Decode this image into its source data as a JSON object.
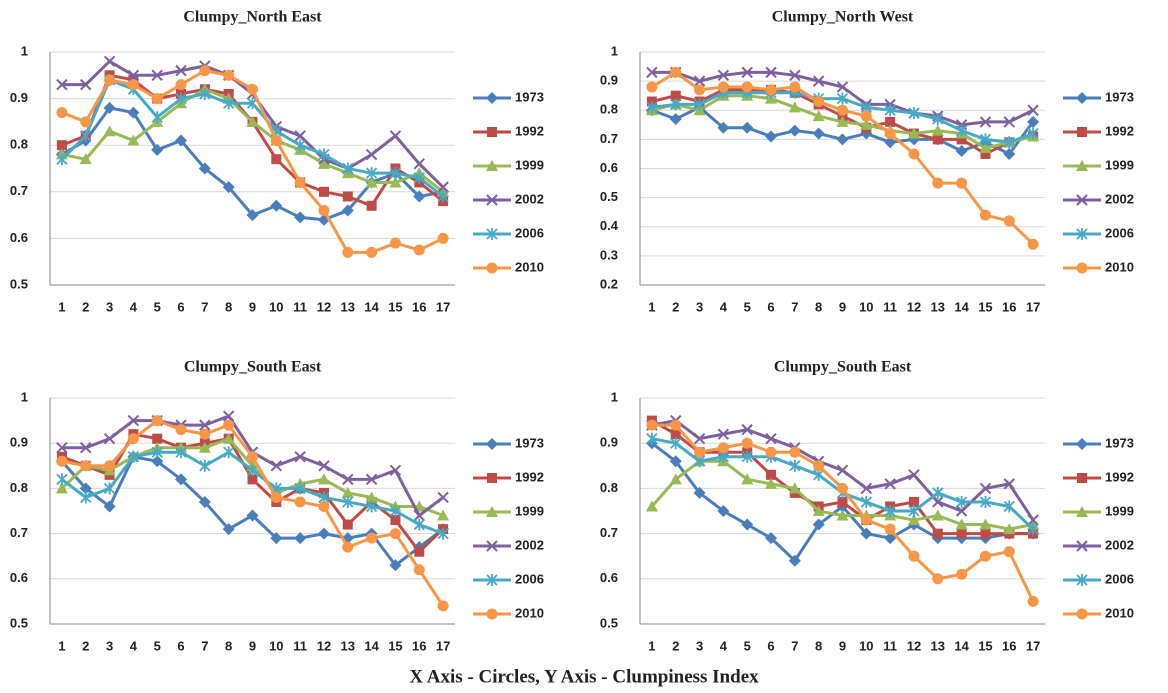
{
  "chart_data": [
    {
      "type": "line",
      "title": "Clumpy_North  East",
      "categories": [
        "1",
        "2",
        "3",
        "4",
        "5",
        "6",
        "7",
        "8",
        "9",
        "10",
        "11",
        "12",
        "13",
        "14",
        "15",
        "16",
        "17"
      ],
      "ylim": [
        0.5,
        1
      ],
      "yticks": [
        0.5,
        0.6,
        0.7,
        0.8,
        0.9,
        1
      ],
      "grid": true,
      "series": [
        {
          "name": "1973",
          "color": "#4a7ebb",
          "values": [
            0.78,
            0.81,
            0.88,
            0.87,
            0.79,
            0.81,
            0.75,
            0.71,
            0.65,
            0.67,
            0.645,
            0.64,
            0.66,
            0.72,
            0.74,
            0.69,
            0.7
          ]
        },
        {
          "name": "1992",
          "color": "#be4b48",
          "values": [
            0.8,
            0.82,
            0.95,
            0.94,
            0.9,
            0.91,
            0.92,
            0.91,
            0.85,
            0.77,
            0.72,
            0.7,
            0.69,
            0.67,
            0.75,
            0.72,
            0.68
          ]
        },
        {
          "name": "1999",
          "color": "#98b954",
          "values": [
            0.78,
            0.77,
            0.83,
            0.81,
            0.85,
            0.89,
            0.92,
            0.9,
            0.85,
            0.81,
            0.79,
            0.76,
            0.74,
            0.72,
            0.72,
            0.74,
            0.7
          ]
        },
        {
          "name": "2002",
          "color": "#7d60a0",
          "values": [
            0.93,
            0.93,
            0.98,
            0.95,
            0.95,
            0.96,
            0.97,
            0.95,
            0.91,
            0.84,
            0.82,
            0.77,
            0.75,
            0.78,
            0.82,
            0.76,
            0.71
          ]
        },
        {
          "name": "2006",
          "color": "#46aac5",
          "values": [
            0.77,
            0.82,
            0.94,
            0.92,
            0.86,
            0.9,
            0.91,
            0.89,
            0.89,
            0.83,
            0.8,
            0.78,
            0.75,
            0.74,
            0.74,
            0.73,
            0.69
          ]
        },
        {
          "name": "2010",
          "color": "#f79646",
          "values": [
            0.87,
            0.85,
            0.94,
            0.93,
            0.9,
            0.93,
            0.96,
            0.95,
            0.92,
            0.81,
            0.72,
            0.66,
            0.57,
            0.57,
            0.59,
            0.575,
            0.6
          ]
        }
      ]
    },
    {
      "type": "line",
      "title": "Clumpy_North  West",
      "categories": [
        "1",
        "2",
        "3",
        "4",
        "5",
        "6",
        "7",
        "8",
        "9",
        "10",
        "11",
        "12",
        "13",
        "14",
        "15",
        "16",
        "17"
      ],
      "ylim": [
        0.2,
        1
      ],
      "yticks": [
        0.2,
        0.3,
        0.4,
        0.5,
        0.6,
        0.7,
        0.8,
        0.9,
        1
      ],
      "grid": true,
      "series": [
        {
          "name": "1973",
          "color": "#4a7ebb",
          "values": [
            0.8,
            0.77,
            0.81,
            0.74,
            0.74,
            0.71,
            0.73,
            0.72,
            0.7,
            0.72,
            0.69,
            0.7,
            0.7,
            0.66,
            0.69,
            0.65,
            0.76
          ]
        },
        {
          "name": "1992",
          "color": "#be4b48",
          "values": [
            0.83,
            0.85,
            0.83,
            0.87,
            0.87,
            0.87,
            0.86,
            0.82,
            0.78,
            0.74,
            0.76,
            0.72,
            0.7,
            0.7,
            0.65,
            0.69,
            0.71
          ]
        },
        {
          "name": "1999",
          "color": "#98b954",
          "values": [
            0.8,
            0.82,
            0.8,
            0.85,
            0.85,
            0.84,
            0.81,
            0.78,
            0.76,
            0.75,
            0.73,
            0.72,
            0.73,
            0.72,
            0.67,
            0.69,
            0.71
          ]
        },
        {
          "name": "2002",
          "color": "#7d60a0",
          "values": [
            0.93,
            0.93,
            0.9,
            0.92,
            0.93,
            0.93,
            0.92,
            0.9,
            0.88,
            0.82,
            0.82,
            0.79,
            0.78,
            0.75,
            0.76,
            0.76,
            0.8
          ]
        },
        {
          "name": "2006",
          "color": "#46aac5",
          "values": [
            0.81,
            0.82,
            0.82,
            0.86,
            0.86,
            0.86,
            0.86,
            0.84,
            0.84,
            0.81,
            0.8,
            0.79,
            0.77,
            0.73,
            0.7,
            0.69,
            0.72
          ]
        },
        {
          "name": "2010",
          "color": "#f79646",
          "values": [
            0.88,
            0.93,
            0.87,
            0.88,
            0.88,
            0.87,
            0.88,
            0.83,
            0.8,
            0.78,
            0.72,
            0.65,
            0.55,
            0.55,
            0.44,
            0.42,
            0.34
          ]
        }
      ]
    },
    {
      "type": "line",
      "title": "Clumpy_South  East",
      "categories": [
        "1",
        "2",
        "3",
        "4",
        "5",
        "6",
        "7",
        "8",
        "9",
        "10",
        "11",
        "12",
        "13",
        "14",
        "15",
        "16",
        "17"
      ],
      "ylim": [
        0.5,
        1
      ],
      "yticks": [
        0.5,
        0.6,
        0.7,
        0.8,
        0.9,
        1
      ],
      "grid": true,
      "series": [
        {
          "name": "1973",
          "color": "#4a7ebb",
          "values": [
            0.86,
            0.8,
            0.76,
            0.87,
            0.86,
            0.82,
            0.77,
            0.71,
            0.74,
            0.69,
            0.69,
            0.7,
            0.69,
            0.7,
            0.63,
            0.67,
            0.71
          ]
        },
        {
          "name": "1992",
          "color": "#be4b48",
          "values": [
            0.87,
            0.85,
            0.83,
            0.92,
            0.91,
            0.89,
            0.9,
            0.91,
            0.82,
            0.77,
            0.8,
            0.79,
            0.72,
            0.77,
            0.73,
            0.66,
            0.71
          ]
        },
        {
          "name": "1999",
          "color": "#98b954",
          "values": [
            0.8,
            0.85,
            0.84,
            0.87,
            0.89,
            0.89,
            0.89,
            0.91,
            0.85,
            0.79,
            0.81,
            0.82,
            0.79,
            0.78,
            0.76,
            0.76,
            0.74
          ]
        },
        {
          "name": "2002",
          "color": "#7d60a0",
          "values": [
            0.89,
            0.89,
            0.91,
            0.95,
            0.95,
            0.94,
            0.94,
            0.96,
            0.88,
            0.85,
            0.87,
            0.85,
            0.82,
            0.82,
            0.84,
            0.74,
            0.78
          ]
        },
        {
          "name": "2006",
          "color": "#46aac5",
          "values": [
            0.82,
            0.78,
            0.8,
            0.87,
            0.88,
            0.88,
            0.85,
            0.88,
            0.84,
            0.8,
            0.8,
            0.78,
            0.77,
            0.76,
            0.75,
            0.72,
            0.7
          ]
        },
        {
          "name": "2010",
          "color": "#f79646",
          "values": [
            0.86,
            0.85,
            0.85,
            0.91,
            0.95,
            0.93,
            0.92,
            0.94,
            0.87,
            0.78,
            0.77,
            0.76,
            0.67,
            0.69,
            0.7,
            0.62,
            0.54
          ]
        }
      ]
    },
    {
      "type": "line",
      "title": "Clumpy_South East",
      "categories": [
        "1",
        "2",
        "3",
        "4",
        "5",
        "6",
        "7",
        "8",
        "9",
        "10",
        "11",
        "12",
        "13",
        "14",
        "15",
        "16",
        "17"
      ],
      "ylim": [
        0.5,
        1
      ],
      "yticks": [
        0.5,
        0.6,
        0.7,
        0.8,
        0.9,
        1
      ],
      "grid": true,
      "series": [
        {
          "name": "1973",
          "color": "#4a7ebb",
          "values": [
            0.9,
            0.86,
            0.79,
            0.75,
            0.72,
            0.69,
            0.64,
            0.72,
            0.76,
            0.7,
            0.69,
            0.72,
            0.69,
            0.69,
            0.69,
            0.7,
            0.7
          ]
        },
        {
          "name": "1992",
          "color": "#be4b48",
          "values": [
            0.95,
            0.92,
            0.88,
            0.88,
            0.88,
            0.83,
            0.79,
            0.76,
            0.77,
            0.73,
            0.76,
            0.77,
            0.7,
            0.7,
            0.7,
            0.7,
            0.7
          ]
        },
        {
          "name": "1999",
          "color": "#98b954",
          "values": [
            0.76,
            0.82,
            0.86,
            0.86,
            0.82,
            0.81,
            0.8,
            0.75,
            0.74,
            0.74,
            0.74,
            0.73,
            0.74,
            0.72,
            0.72,
            0.71,
            0.72
          ]
        },
        {
          "name": "2002",
          "color": "#7d60a0",
          "values": [
            0.94,
            0.95,
            0.91,
            0.92,
            0.93,
            0.91,
            0.89,
            0.86,
            0.84,
            0.8,
            0.81,
            0.83,
            0.77,
            0.75,
            0.8,
            0.81,
            0.73
          ]
        },
        {
          "name": "2006",
          "color": "#46aac5",
          "values": [
            0.91,
            0.9,
            0.86,
            0.87,
            0.87,
            0.87,
            0.85,
            0.83,
            0.79,
            0.77,
            0.75,
            0.75,
            0.79,
            0.77,
            0.77,
            0.76,
            0.71
          ]
        },
        {
          "name": "2010",
          "color": "#f79646",
          "values": [
            0.94,
            0.94,
            0.88,
            0.89,
            0.9,
            0.88,
            0.88,
            0.85,
            0.8,
            0.73,
            0.71,
            0.65,
            0.6,
            0.61,
            0.65,
            0.66,
            0.55
          ]
        }
      ]
    }
  ],
  "caption": "X Axis - Circles, Y Axis - Clumpiness Index"
}
